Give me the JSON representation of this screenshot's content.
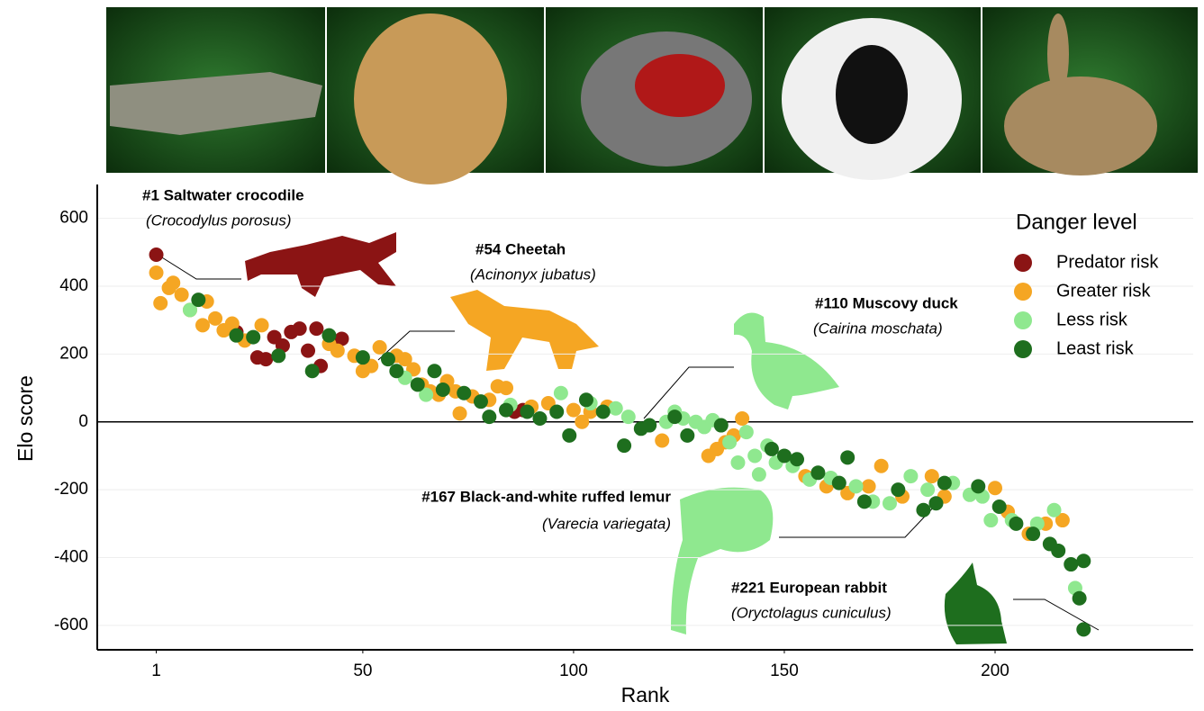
{
  "chart_data": {
    "type": "scatter",
    "x_label": "Rank",
    "y_label": "Elo score",
    "legend_title": "Danger level",
    "legend": "upper right",
    "grid": true,
    "xlim": [
      -13,
      247
    ],
    "ylim": [
      -672,
      700
    ],
    "xticks": [
      1,
      50,
      100,
      150,
      200
    ],
    "yticks": [
      600,
      400,
      200,
      0,
      -200,
      -400,
      -600
    ],
    "series": [
      {
        "name": "Predator risk",
        "color": "#8b1414",
        "x": [
          1,
          20,
          25,
          27,
          29,
          31,
          33,
          35,
          37,
          39,
          40,
          45,
          86,
          88
        ],
        "values": [
          493,
          265,
          190,
          185,
          250,
          225,
          265,
          275,
          210,
          275,
          165,
          245,
          30,
          35
        ]
      },
      {
        "name": "Greater risk",
        "color": "#f5a623",
        "x": [
          1,
          2,
          4,
          5,
          7,
          9,
          12,
          13,
          15,
          17,
          19,
          22,
          26,
          42,
          44,
          48,
          50,
          52,
          54,
          58,
          60,
          62,
          64,
          66,
          68,
          70,
          72,
          73,
          76,
          80,
          82,
          84,
          90,
          94,
          100,
          102,
          104,
          108,
          121,
          132,
          134,
          136,
          138,
          140,
          155,
          160,
          165,
          170,
          173,
          178,
          185,
          188,
          200,
          203,
          208,
          212,
          216
        ],
        "values": [
          440,
          350,
          395,
          410,
          375,
          330,
          285,
          355,
          305,
          270,
          290,
          240,
          285,
          230,
          210,
          195,
          150,
          165,
          220,
          195,
          185,
          155,
          110,
          90,
          80,
          120,
          90,
          25,
          75,
          65,
          105,
          100,
          45,
          55,
          35,
          0,
          30,
          45,
          -55,
          -100,
          -80,
          -60,
          -40,
          10,
          -160,
          -190,
          -210,
          -190,
          -130,
          -220,
          -160,
          -220,
          -195,
          -265,
          -330,
          -300,
          -290
        ]
      },
      {
        "name": "Less risk",
        "color": "#8fe88f",
        "x": [
          9,
          60,
          65,
          85,
          97,
          104,
          110,
          113,
          122,
          124,
          126,
          129,
          131,
          133,
          137,
          139,
          141,
          143,
          144,
          146,
          148,
          152,
          156,
          161,
          167,
          171,
          175,
          180,
          184,
          190,
          194,
          197,
          199,
          204,
          210,
          214,
          219
        ],
        "values": [
          330,
          130,
          80,
          50,
          85,
          55,
          40,
          15,
          0,
          30,
          10,
          0,
          -15,
          5,
          -60,
          -120,
          -30,
          -100,
          -155,
          -70,
          -120,
          -130,
          -170,
          -165,
          -190,
          -235,
          -240,
          -160,
          -200,
          -180,
          -215,
          -220,
          -290,
          -290,
          -300,
          -260,
          -490
        ]
      },
      {
        "name": "Least risk",
        "color": "#1e6e1e",
        "x": [
          11,
          20,
          24,
          30,
          38,
          42,
          50,
          56,
          58,
          63,
          67,
          69,
          74,
          78,
          80,
          84,
          89,
          92,
          96,
          99,
          103,
          107,
          112,
          116,
          118,
          124,
          127,
          135,
          147,
          150,
          153,
          158,
          163,
          165,
          169,
          177,
          183,
          186,
          188,
          196,
          201,
          205,
          209,
          213,
          215,
          218,
          221,
          220,
          221
        ],
        "values": [
          360,
          255,
          250,
          195,
          150,
          255,
          190,
          185,
          150,
          110,
          150,
          95,
          85,
          60,
          15,
          35,
          30,
          10,
          30,
          -40,
          65,
          30,
          -70,
          -20,
          -10,
          15,
          -40,
          -10,
          -80,
          -100,
          -110,
          -150,
          -180,
          -105,
          -235,
          -200,
          -260,
          -240,
          -180,
          -190,
          -250,
          -300,
          -330,
          -360,
          -380,
          -420,
          -410,
          -520,
          -612
        ]
      }
    ],
    "annotations": [
      {
        "title": "#1 Saltwater crocodile",
        "species": "(Crocodylus porosus)"
      },
      {
        "title": "#54 Cheetah",
        "species": "(Acinonyx jubatus)"
      },
      {
        "title": "#110 Muscovy duck",
        "species": "(Cairina moschata)"
      },
      {
        "title": "#167 Black-and-white ruffed lemur",
        "species": "(Varecia variegata)"
      },
      {
        "title": "#221 European rabbit",
        "species": "(Oryctolagus cuniculus)"
      }
    ]
  }
}
